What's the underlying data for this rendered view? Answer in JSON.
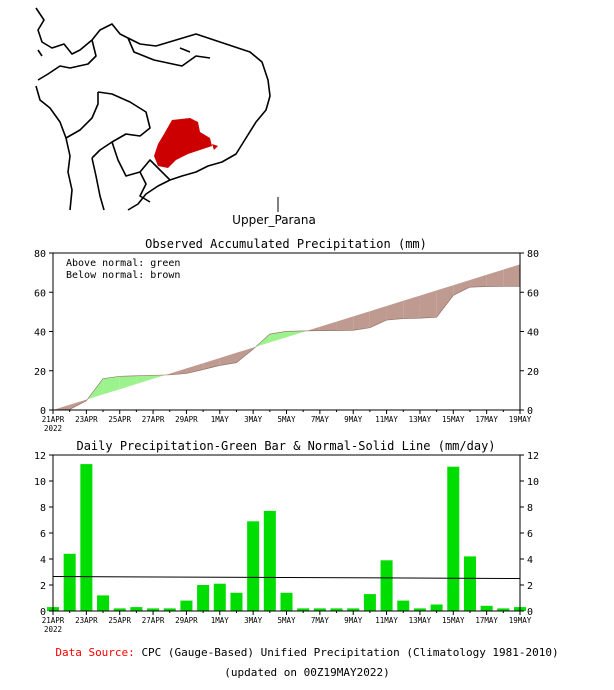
{
  "region_label": "Upper_Parana",
  "colors": {
    "above_normal": "#9cf28c",
    "below_normal": "#bf9a90",
    "bar": "#00dd00",
    "highlight_region": "#cc0000",
    "source_label": "#ff0000"
  },
  "chart_data": [
    {
      "type": "area",
      "title": "Observed Accumulated Precipitation (mm)",
      "legend": [
        "Above normal: green",
        "Below normal: brown"
      ],
      "ylim": [
        0,
        80
      ],
      "yticks": [
        0,
        20,
        40,
        60,
        80
      ],
      "xlim": [
        0,
        28
      ],
      "x_tick_labels": [
        "21APR",
        "23APR",
        "25APR",
        "27APR",
        "29APR",
        "1MAY",
        "3MAY",
        "5MAY",
        "7MAY",
        "9MAY",
        "11MAY",
        "13MAY",
        "15MAY",
        "17MAY",
        "19MAY"
      ],
      "year_label": "2022",
      "series": [
        {
          "name": "Observed",
          "values": [
            0,
            0.3,
            4.7,
            16.0,
            17.2,
            17.4,
            17.7,
            17.9,
            18.6,
            20.6,
            22.7,
            24.1,
            31.0,
            38.7,
            40.1,
            40.3,
            40.4,
            40.5,
            40.6,
            41.9,
            45.8,
            46.6,
            46.8,
            47.3,
            58.4,
            62.6,
            62.9,
            63.0,
            63.0
          ]
        },
        {
          "name": "Normal",
          "values": [
            0,
            2.65,
            5.3,
            7.95,
            10.6,
            13.25,
            15.9,
            18.55,
            21.2,
            23.85,
            26.5,
            29.15,
            31.8,
            34.45,
            37.1,
            39.75,
            42.4,
            45.05,
            47.7,
            50.35,
            53.0,
            55.65,
            58.3,
            60.95,
            63.6,
            66.25,
            68.9,
            71.55,
            74.2
          ]
        }
      ]
    },
    {
      "type": "bar",
      "title": "Daily Precipitation-Green Bar & Normal-Solid Line (mm/day)",
      "ylim": [
        0,
        12
      ],
      "yticks": [
        0,
        2,
        4,
        6,
        8,
        10,
        12
      ],
      "x_tick_labels": [
        "21APR",
        "23APR",
        "25APR",
        "27APR",
        "29APR",
        "1MAY",
        "3MAY",
        "5MAY",
        "7MAY",
        "9MAY",
        "11MAY",
        "13MAY",
        "15MAY",
        "17MAY",
        "19MAY"
      ],
      "year_label": "2022",
      "values": [
        0.3,
        4.4,
        11.3,
        1.2,
        0.2,
        0.3,
        0.2,
        0.2,
        0.8,
        2.0,
        2.1,
        1.4,
        6.9,
        7.7,
        1.4,
        0.2,
        0.2,
        0.2,
        0.2,
        1.3,
        3.9,
        0.8,
        0.2,
        0.5,
        11.1,
        4.2,
        0.4,
        0.2,
        0.3
      ],
      "normal_line": [
        2.65,
        2.5
      ]
    }
  ],
  "footer": {
    "source_label": "Data Source:",
    "source_text": "CPC (Gauge-Based) Unified Precipitation (Climatology 1981-2010)",
    "updated": "(updated on 00Z19MAY2022)"
  }
}
